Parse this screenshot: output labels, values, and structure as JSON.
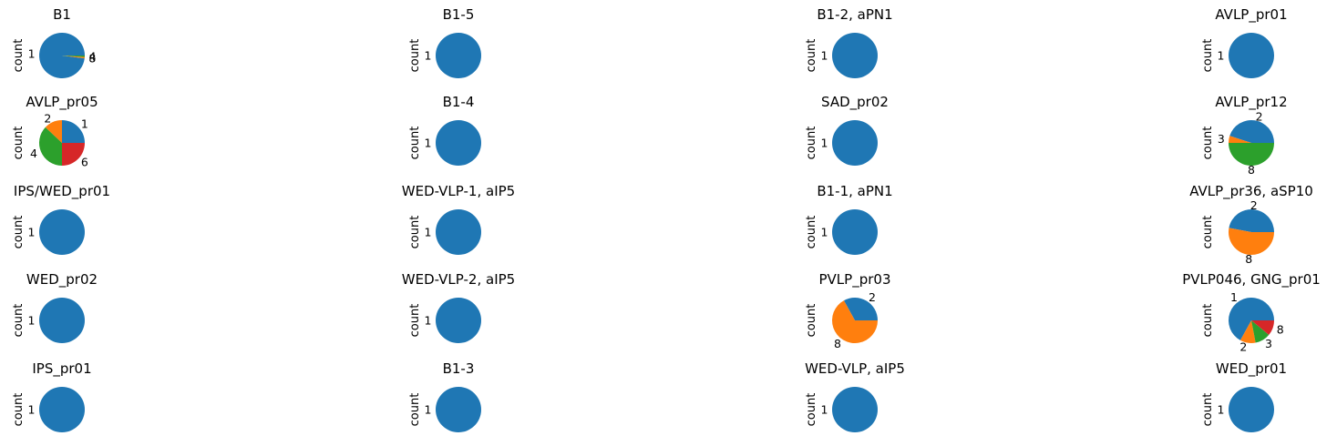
{
  "colors": {
    "1": "#1f77b4",
    "2": "#ff7f0e",
    "3": "#ff7f0e",
    "4": "#2ca02c",
    "6": "#d62728",
    "8": "#2ca02c"
  },
  "chart_data": [
    {
      "type": "pie",
      "title": "B1",
      "ylabel": "count",
      "slices": [
        {
          "label": "1",
          "value": 0.98,
          "color": "#1f77b4"
        },
        {
          "label": "8",
          "value": 0.01,
          "color": "#ff7f0e"
        },
        {
          "label": "4",
          "value": 0.01,
          "color": "#2ca02c"
        }
      ]
    },
    {
      "type": "pie",
      "title": "B1-5",
      "ylabel": "count",
      "slices": [
        {
          "label": "1",
          "value": 1,
          "color": "#1f77b4"
        }
      ]
    },
    {
      "type": "pie",
      "title": "B1-2, aPN1",
      "ylabel": "count",
      "slices": [
        {
          "label": "1",
          "value": 1,
          "color": "#1f77b4"
        }
      ]
    },
    {
      "type": "pie",
      "title": "AVLP_pr01",
      "ylabel": "count",
      "slices": [
        {
          "label": "1",
          "value": 1,
          "color": "#1f77b4"
        }
      ]
    },
    {
      "type": "pie",
      "title": "AVLP_pr05",
      "ylabel": "count",
      "slices": [
        {
          "label": "1",
          "value": 0.25,
          "color": "#1f77b4"
        },
        {
          "label": "2",
          "value": 0.13,
          "color": "#ff7f0e"
        },
        {
          "label": "4",
          "value": 0.37,
          "color": "#2ca02c"
        },
        {
          "label": "6",
          "value": 0.25,
          "color": "#d62728"
        }
      ]
    },
    {
      "type": "pie",
      "title": "B1-4",
      "ylabel": "count",
      "slices": [
        {
          "label": "1",
          "value": 1,
          "color": "#1f77b4"
        }
      ]
    },
    {
      "type": "pie",
      "title": "SAD_pr02",
      "ylabel": "count",
      "slices": [
        {
          "label": "1",
          "value": 1,
          "color": "#1f77b4"
        }
      ]
    },
    {
      "type": "pie",
      "title": "AVLP_pr12",
      "ylabel": "count",
      "slices": [
        {
          "label": "2",
          "value": 0.45,
          "color": "#1f77b4"
        },
        {
          "label": "3",
          "value": 0.05,
          "color": "#ff7f0e"
        },
        {
          "label": "8",
          "value": 0.5,
          "color": "#2ca02c"
        }
      ]
    },
    {
      "type": "pie",
      "title": "IPS/WED_pr01",
      "ylabel": "count",
      "slices": [
        {
          "label": "1",
          "value": 1,
          "color": "#1f77b4"
        }
      ]
    },
    {
      "type": "pie",
      "title": "WED-VLP-1, aIP5",
      "ylabel": "count",
      "slices": [
        {
          "label": "1",
          "value": 1,
          "color": "#1f77b4"
        }
      ]
    },
    {
      "type": "pie",
      "title": "B1-1, aPN1",
      "ylabel": "count",
      "slices": [
        {
          "label": "1",
          "value": 1,
          "color": "#1f77b4"
        }
      ]
    },
    {
      "type": "pie",
      "title": "AVLP_pr36, aSP10",
      "ylabel": "count",
      "slices": [
        {
          "label": "2",
          "value": 0.47,
          "color": "#1f77b4"
        },
        {
          "label": "8",
          "value": 0.53,
          "color": "#ff7f0e"
        }
      ]
    },
    {
      "type": "pie",
      "title": "WED_pr02",
      "ylabel": "count",
      "slices": [
        {
          "label": "1",
          "value": 1,
          "color": "#1f77b4"
        }
      ]
    },
    {
      "type": "pie",
      "title": "WED-VLP-2, aIP5",
      "ylabel": "count",
      "slices": [
        {
          "label": "1",
          "value": 1,
          "color": "#1f77b4"
        }
      ]
    },
    {
      "type": "pie",
      "title": "PVLP_pr03",
      "ylabel": "count",
      "slices": [
        {
          "label": "2",
          "value": 0.33,
          "color": "#1f77b4"
        },
        {
          "label": "8",
          "value": 0.67,
          "color": "#ff7f0e"
        }
      ]
    },
    {
      "type": "pie",
      "title": "PVLP046, GNG_pr01",
      "ylabel": "count",
      "slices": [
        {
          "label": "1",
          "value": 0.67,
          "color": "#1f77b4"
        },
        {
          "label": "2",
          "value": 0.11,
          "color": "#ff7f0e"
        },
        {
          "label": "3",
          "value": 0.11,
          "color": "#2ca02c"
        },
        {
          "label": "8",
          "value": 0.11,
          "color": "#d62728"
        }
      ]
    },
    {
      "type": "pie",
      "title": "IPS_pr01",
      "ylabel": "count",
      "slices": [
        {
          "label": "1",
          "value": 1,
          "color": "#1f77b4"
        }
      ]
    },
    {
      "type": "pie",
      "title": "B1-3",
      "ylabel": "count",
      "slices": [
        {
          "label": "1",
          "value": 1,
          "color": "#1f77b4"
        }
      ]
    },
    {
      "type": "pie",
      "title": "WED-VLP, aIP5",
      "ylabel": "count",
      "slices": [
        {
          "label": "1",
          "value": 1,
          "color": "#1f77b4"
        }
      ]
    },
    {
      "type": "pie",
      "title": "WED_pr01",
      "ylabel": "count",
      "slices": [
        {
          "label": "1",
          "value": 1,
          "color": "#1f77b4"
        }
      ]
    }
  ]
}
